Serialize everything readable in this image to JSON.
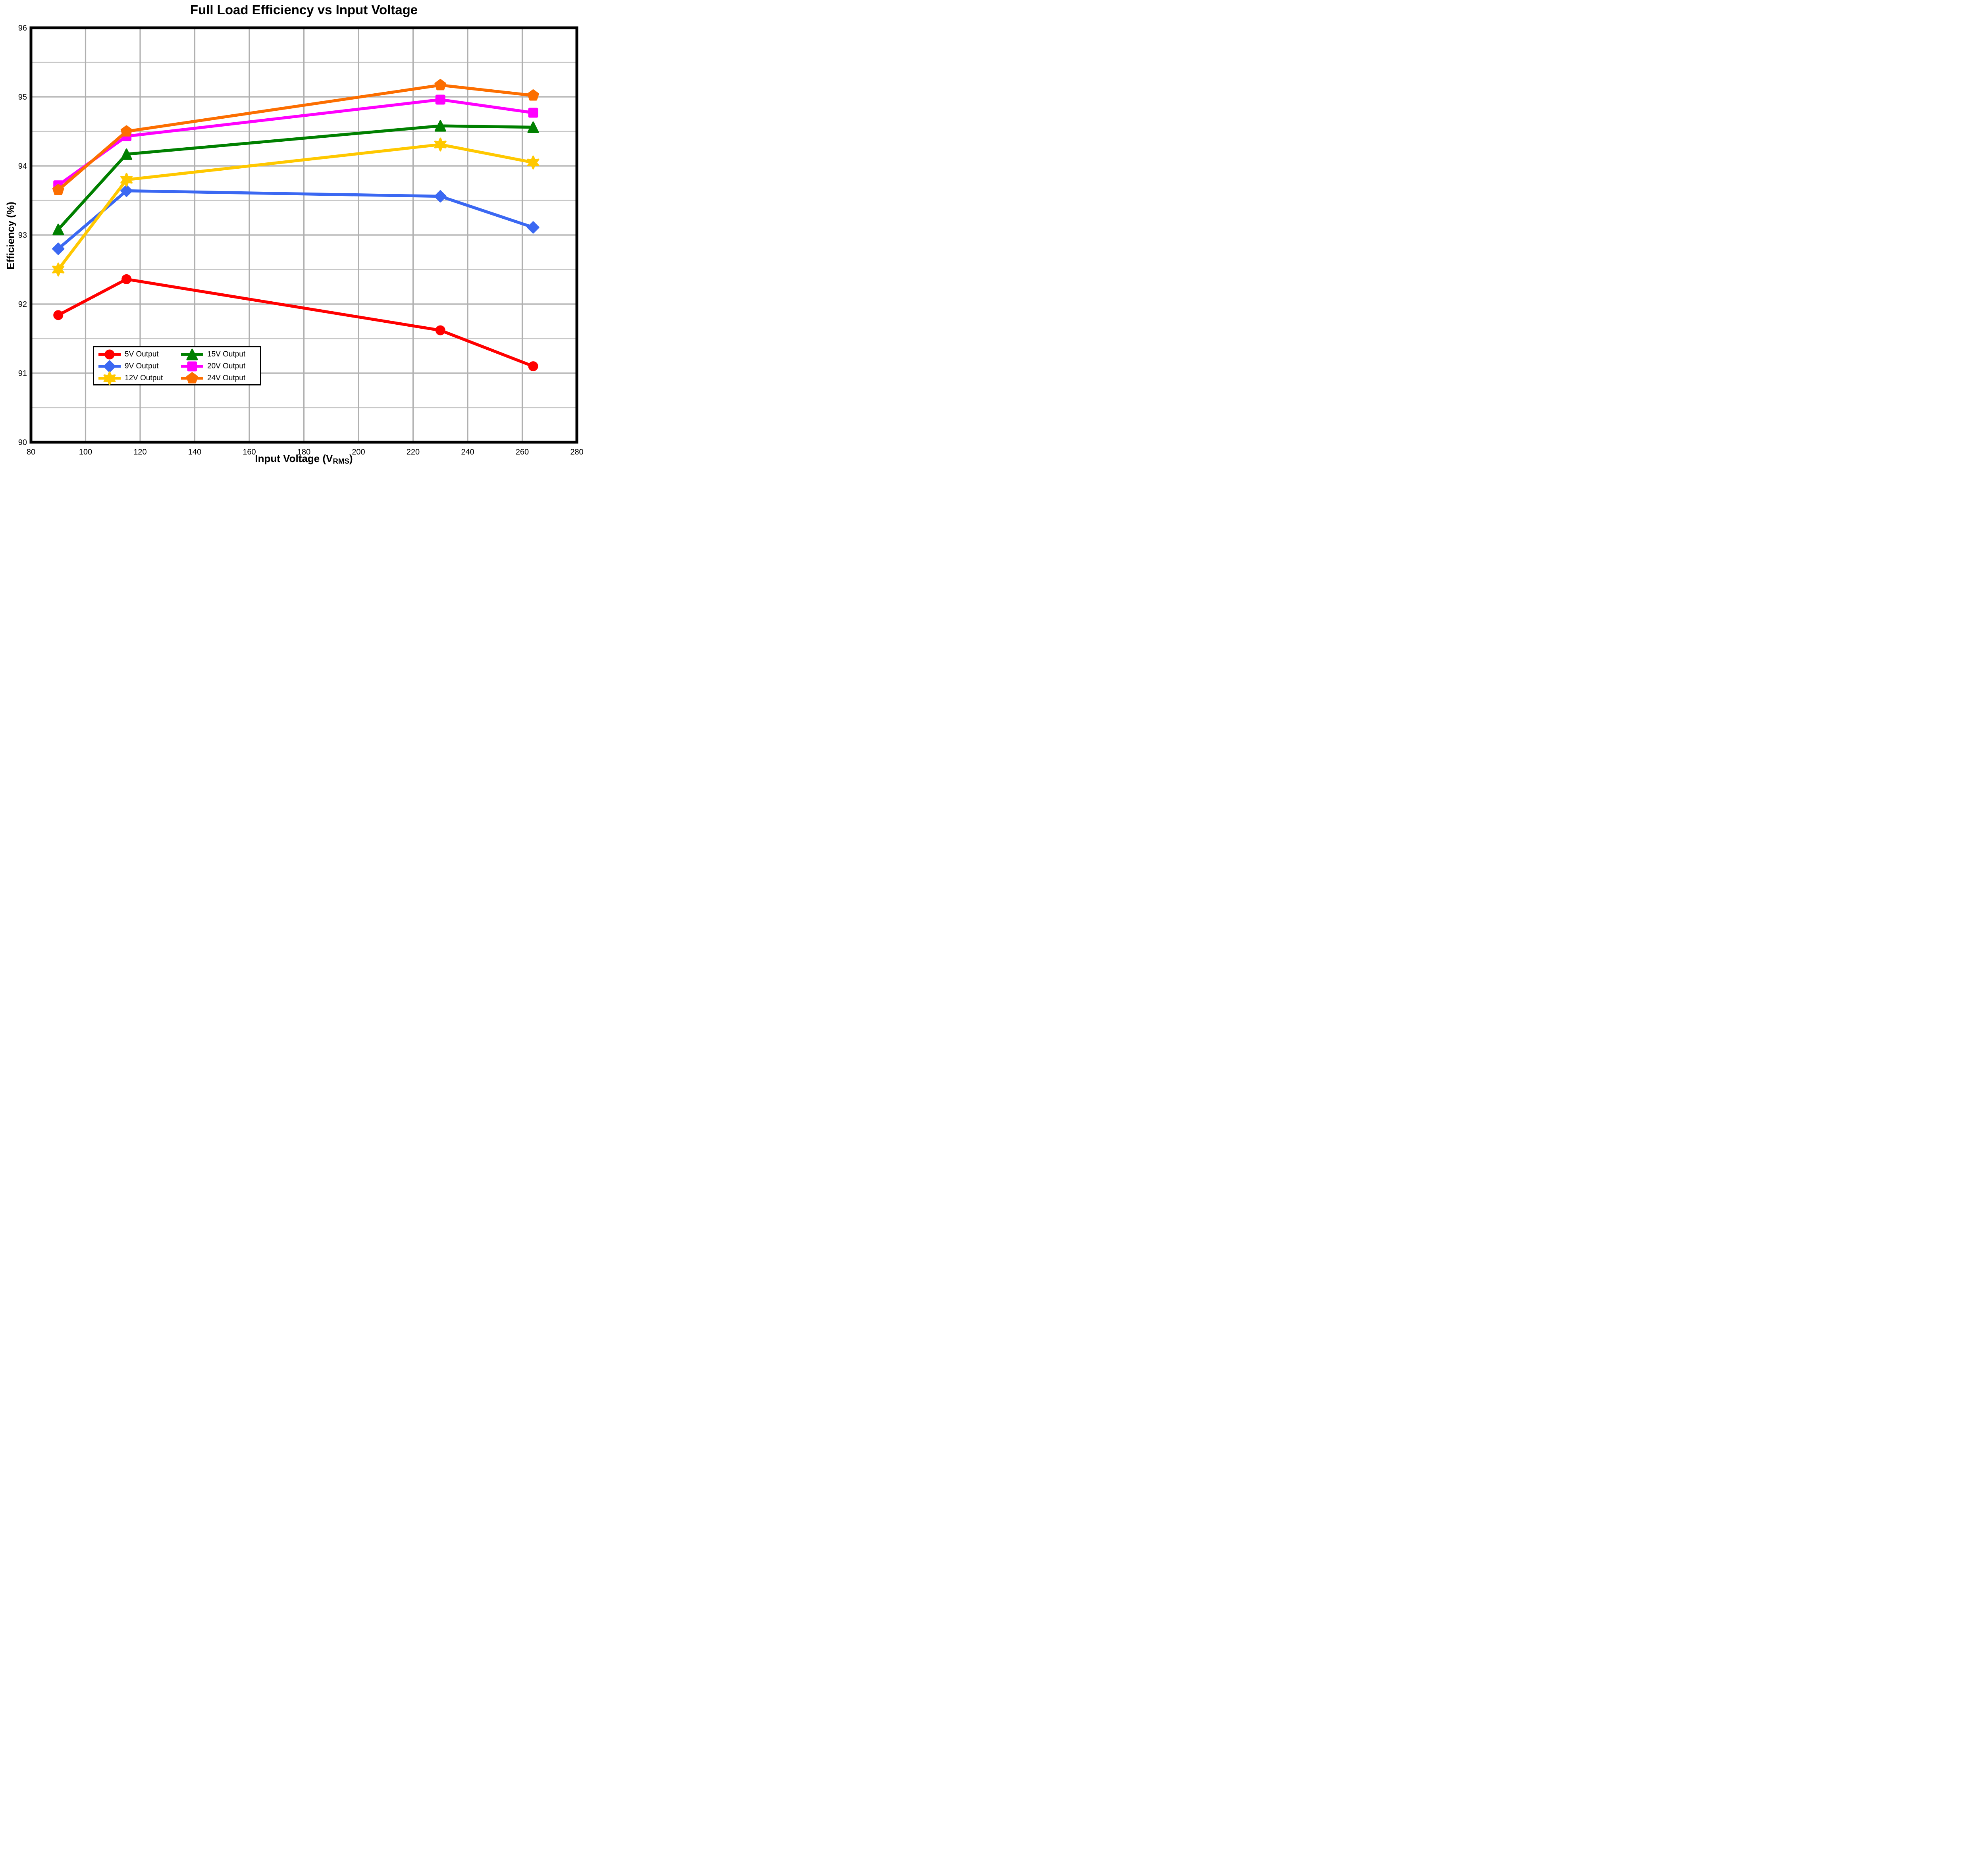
{
  "chart_data": {
    "type": "line",
    "title": "Full Load Efficiency vs Input Voltage",
    "xlabel_main": "Input Voltage (V",
    "xlabel_sub": "RMS",
    "xlabel_close": ")",
    "ylabel": "Efficiency (%)",
    "xlim": [
      80,
      280
    ],
    "ylim": [
      90,
      96
    ],
    "x_ticks": [
      80,
      100,
      120,
      140,
      160,
      180,
      200,
      220,
      240,
      260,
      280
    ],
    "y_ticks": [
      90,
      91,
      92,
      93,
      94,
      95,
      96
    ],
    "y_minor_ticks": [
      90.5,
      91.5,
      92.5,
      93.5,
      94.5,
      95.5
    ],
    "grid": true,
    "legend_position": "lower left",
    "x": [
      90,
      115,
      230,
      264
    ],
    "series": [
      {
        "name": "5V Output",
        "color": "#FF0000",
        "marker": "circle",
        "values": [
          91.84,
          92.36,
          91.62,
          91.1
        ]
      },
      {
        "name": "9V Output",
        "color": "#3B68F2",
        "marker": "diamond",
        "values": [
          92.8,
          93.64,
          93.56,
          93.11
        ]
      },
      {
        "name": "12V Output",
        "color": "#FFC800",
        "marker": "star6",
        "values": [
          92.5,
          93.8,
          94.31,
          94.05
        ]
      },
      {
        "name": "15V Output",
        "color": "#008000",
        "marker": "triangle",
        "values": [
          93.08,
          94.17,
          94.58,
          94.56
        ]
      },
      {
        "name": "20V Output",
        "color": "#FF00FF",
        "marker": "square",
        "values": [
          93.72,
          94.43,
          94.96,
          94.77
        ]
      },
      {
        "name": "24V Output",
        "color": "#FC6E00",
        "marker": "pentagon",
        "values": [
          93.65,
          94.5,
          95.17,
          95.02
        ]
      }
    ],
    "style_colors": {
      "grid_major": "#B0B0B0",
      "grid_minor": "#C8C8C8",
      "spine": "#000000",
      "background": "#FFFFFF"
    }
  }
}
